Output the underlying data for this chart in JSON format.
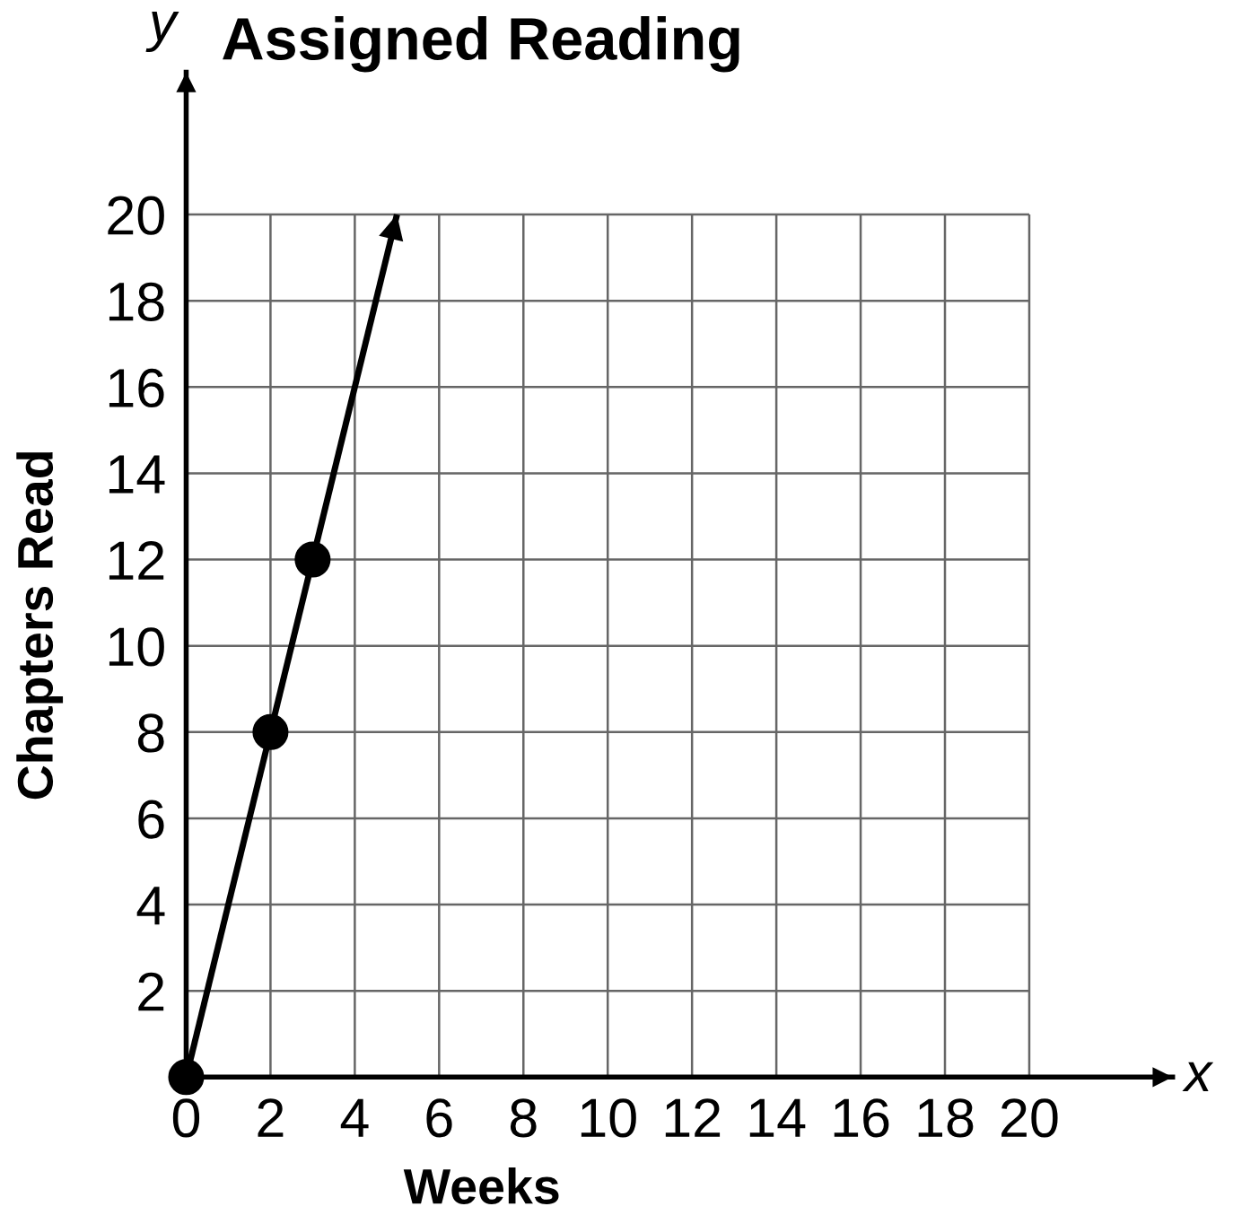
{
  "chart_data": {
    "type": "line",
    "title": "Assigned Reading",
    "xlabel": "Weeks",
    "ylabel": "Chapters Read",
    "annotations": [
      "x",
      "y"
    ],
    "xlim": [
      0,
      23.4
    ],
    "ylim": [
      0,
      23.3
    ],
    "xticks": [
      0,
      2,
      4,
      6,
      8,
      10,
      12,
      14,
      16,
      18,
      20
    ],
    "yticks": [
      {
        "value": 0,
        "label": null
      },
      2,
      4,
      6,
      8,
      10,
      12,
      14,
      16,
      18,
      20
    ],
    "grid": true,
    "series": [
      {
        "color": "#000000",
        "x": [
          0,
          5
        ],
        "values": [
          0,
          20
        ],
        "marker": "none"
      },
      {
        "type": "scatter",
        "color": "#000000",
        "x": [
          0,
          2,
          3
        ],
        "values": [
          0,
          8,
          12
        ],
        "marker": "circle"
      }
    ]
  }
}
